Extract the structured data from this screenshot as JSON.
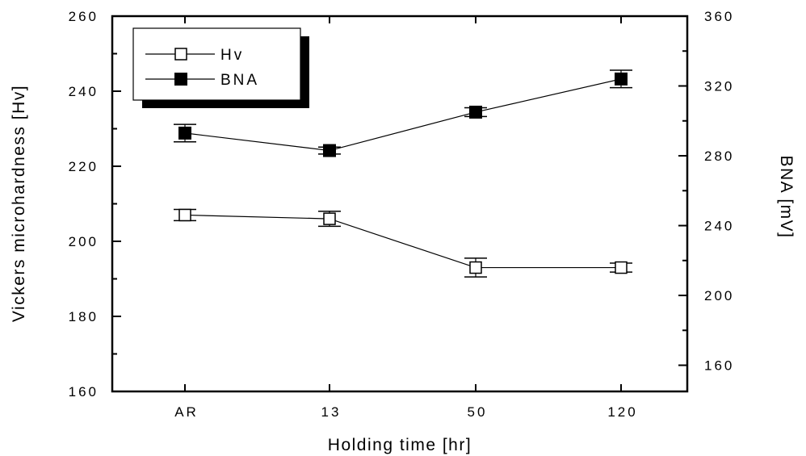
{
  "chart_data": {
    "type": "line",
    "categories": [
      "AR",
      "13",
      "50",
      "120"
    ],
    "xlabel": "Holding time [hr]",
    "ylabel_left": "Vickers microhardness [Hv]",
    "ylabel_right": "BNA [mV]",
    "ylim_left": [
      160,
      260
    ],
    "yticks_left": [
      160,
      180,
      200,
      220,
      240,
      260
    ],
    "ylim_right": [
      145,
      360
    ],
    "yticks_right": [
      160,
      200,
      240,
      280,
      320,
      360
    ],
    "grid": false,
    "legend_position": "top-left",
    "series": [
      {
        "name": "Hv",
        "axis": "left",
        "marker": "open-square",
        "values": [
          207,
          206,
          193,
          193
        ],
        "error": [
          1.5,
          2,
          2.5,
          1.2
        ]
      },
      {
        "name": "BNA",
        "axis": "right",
        "marker": "filled-square",
        "values": [
          293,
          283,
          305,
          324
        ],
        "error": [
          5,
          2,
          2.5,
          5
        ]
      }
    ]
  }
}
